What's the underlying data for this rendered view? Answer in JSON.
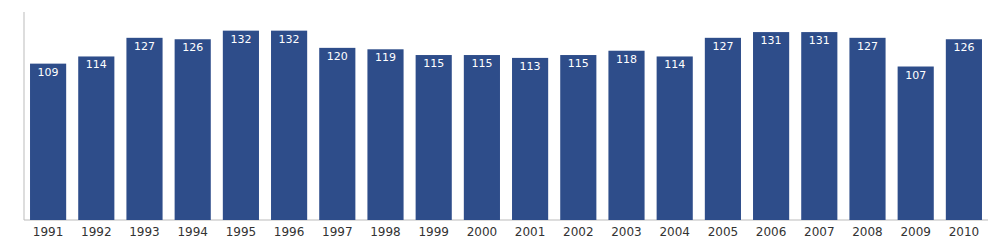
{
  "chart_data": {
    "type": "bar",
    "categories": [
      "1991",
      "1992",
      "1993",
      "1994",
      "1995",
      "1996",
      "1997",
      "1998",
      "1999",
      "2000",
      "2001",
      "2002",
      "2003",
      "2004",
      "2005",
      "2006",
      "2007",
      "2008",
      "2009",
      "2010"
    ],
    "values": [
      109,
      114,
      127,
      126,
      132,
      132,
      120,
      119,
      115,
      115,
      113,
      115,
      118,
      114,
      127,
      131,
      131,
      127,
      107,
      126
    ],
    "color": "#2E4D8A",
    "ylim": [
      0,
      145
    ],
    "yticks": [],
    "grid": false,
    "data_labels": true,
    "tick_labels": "x"
  }
}
